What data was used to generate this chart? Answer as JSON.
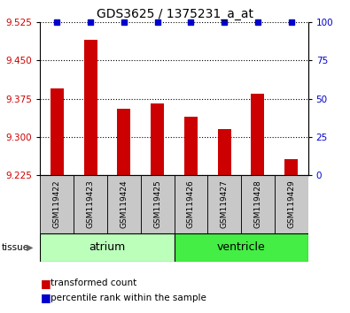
{
  "title": "GDS3625 / 1375231_a_at",
  "samples": [
    "GSM119422",
    "GSM119423",
    "GSM119424",
    "GSM119425",
    "GSM119426",
    "GSM119427",
    "GSM119428",
    "GSM119429"
  ],
  "bar_values": [
    9.395,
    9.49,
    9.355,
    9.365,
    9.34,
    9.315,
    9.385,
    9.257
  ],
  "percentile_values": [
    100,
    100,
    100,
    100,
    100,
    100,
    100,
    100
  ],
  "ylim_left": [
    9.225,
    9.525
  ],
  "ylim_right": [
    0,
    100
  ],
  "yticks_left": [
    9.225,
    9.3,
    9.375,
    9.45,
    9.525
  ],
  "yticks_right": [
    0,
    25,
    50,
    75,
    100
  ],
  "bar_color": "#cc0000",
  "dot_color": "#0000cc",
  "tissue_groups": [
    {
      "label": "atrium",
      "start": 0,
      "end": 4,
      "color": "#bbffbb"
    },
    {
      "label": "ventricle",
      "start": 4,
      "end": 8,
      "color": "#44ee44"
    }
  ],
  "xlabel_color": "#cc0000",
  "ylabel_right_color": "#0000cc",
  "grid_color": "#000000",
  "tick_bg_color": "#c8c8c8",
  "bar_width": 0.4,
  "dot_marker": "s",
  "dot_size": 4
}
